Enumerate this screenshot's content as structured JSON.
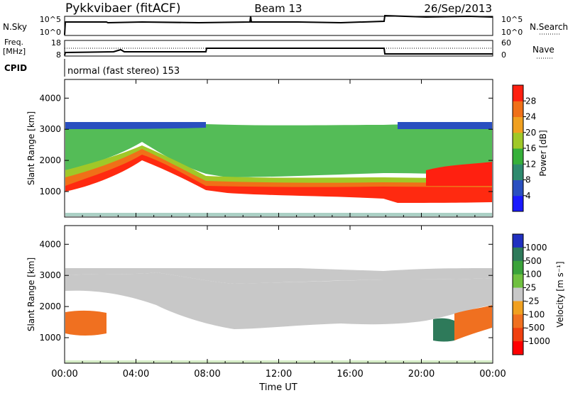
{
  "header": {
    "title": "Pykkvibaer (fitACF)",
    "beam": "Beam 13",
    "date": "26/Sep/2013"
  },
  "info_panels": {
    "nsky_label": "N.Sky",
    "nsky_ticks": [
      "10^5",
      "10^0"
    ],
    "nsearch_label": "N.Search",
    "nsearch_ticks": [
      "10^5",
      "10^0"
    ],
    "freq_label_1": "Freq.",
    "freq_label_2": "[MHz]",
    "freq_ticks": [
      "18",
      "8"
    ],
    "nave_label": "Nave",
    "nave_ticks": [
      "60",
      "0"
    ],
    "cpid_label": "CPID",
    "cpid_text": "normal (fast stereo) 153"
  },
  "chart_data": [
    {
      "type": "heatmap",
      "panel": "power",
      "xlabel": "",
      "ylabel": "Slant Range [km]",
      "x_ticks": [
        "00:00",
        "04:00",
        "08:00",
        "12:00",
        "16:00",
        "20:00",
        "00:00"
      ],
      "y_ticks": [
        "1000",
        "2000",
        "3000",
        "4000"
      ],
      "ylim": [
        180,
        4600
      ],
      "color_scale": {
        "label": "Power [dB]",
        "ticks": [
          "4",
          "8",
          "12",
          "16",
          "20",
          "24",
          "28"
        ],
        "colors": [
          "#1a1aff",
          "#2a4fc0",
          "#2e8a6e",
          "#36b03a",
          "#a0c828",
          "#f0a020",
          "#f07018",
          "#ff2010"
        ]
      }
    },
    {
      "type": "heatmap",
      "panel": "velocity",
      "xlabel": "Time UT",
      "ylabel": "Slant Range [km]",
      "x_ticks": [
        "00:00",
        "04:00",
        "08:00",
        "12:00",
        "16:00",
        "20:00",
        "00:00"
      ],
      "y_ticks": [
        "1000",
        "2000",
        "3000",
        "4000"
      ],
      "ylim": [
        180,
        4600
      ],
      "color_scale": {
        "label": "Velocity [m s⁻¹]",
        "ticks": [
          "1000",
          "500",
          "100",
          "25",
          "-25",
          "-100",
          "-500",
          "-1000"
        ],
        "colors": [
          "#2030c0",
          "#2e7a5a",
          "#3aa23a",
          "#70c040",
          "#c8c8c8",
          "#f0a020",
          "#f07020",
          "#f04010",
          "#ff0000"
        ]
      }
    }
  ]
}
